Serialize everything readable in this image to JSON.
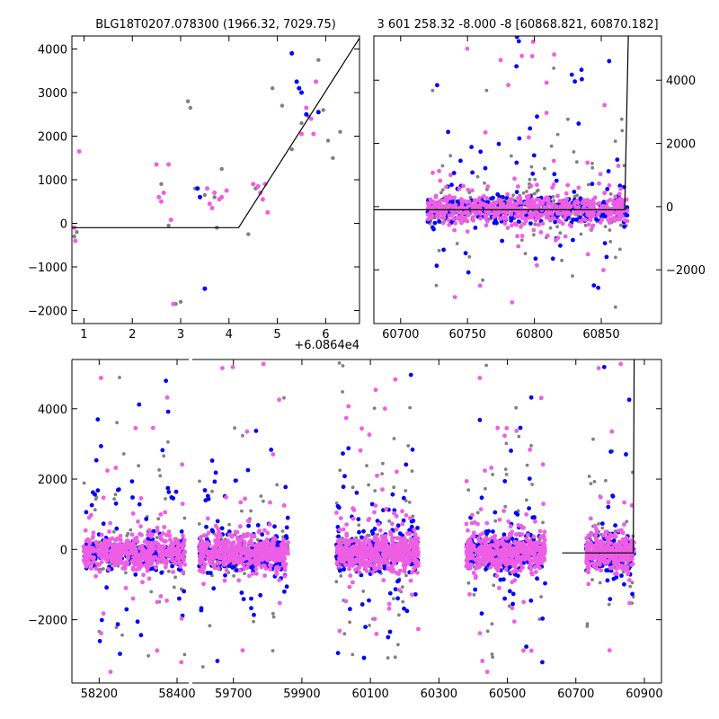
{
  "chart_data": [
    {
      "id": "panel-top-left",
      "type": "scatter",
      "title": "BLG18T0207.078300 (1966.32, 7029.75)",
      "xlim": [
        0.75,
        6.7
      ],
      "ylim": [
        -2300,
        4300
      ],
      "xticks": [
        1,
        2,
        3,
        4,
        5,
        6
      ],
      "yticks": [
        -2000,
        -1000,
        0,
        1000,
        2000,
        3000,
        4000
      ],
      "xtick_labels": [
        "1",
        "2",
        "3",
        "4",
        "5",
        "6"
      ],
      "ytick_labels": [
        "−2000",
        "−1000",
        "0",
        "1000",
        "2000",
        "3000",
        "4000"
      ],
      "x_offset_label": "+6.0864e4",
      "model": {
        "x": [
          0.75,
          4.2,
          6.7
        ],
        "y": [
          -100,
          -100,
          4250
        ]
      },
      "series": [
        {
          "name": "gray",
          "color": "#808080",
          "size": 2.2,
          "points": [
            [
              0.8,
              -300
            ],
            [
              0.85,
              -200
            ],
            [
              2.6,
              900
            ],
            [
              3.15,
              2800
            ],
            [
              3.2,
              2650
            ],
            [
              3.3,
              800
            ],
            [
              3.5,
              650
            ],
            [
              3.7,
              600
            ],
            [
              3.85,
              1250
            ],
            [
              3.75,
              -100
            ],
            [
              2.75,
              -50
            ],
            [
              4.4,
              -250
            ],
            [
              4.55,
              800
            ],
            [
              4.9,
              3100
            ],
            [
              5.1,
              2700
            ],
            [
              5.3,
              1700
            ],
            [
              5.5,
              2300
            ],
            [
              5.65,
              2450
            ],
            [
              5.85,
              3750
            ],
            [
              5.95,
              2600
            ],
            [
              6.05,
              1900
            ],
            [
              6.15,
              1500
            ],
            [
              6.3,
              2100
            ],
            [
              3.0,
              -1800
            ],
            [
              2.9,
              -1850
            ]
          ]
        },
        {
          "name": "blue",
          "color": "#0000ff",
          "size": 2.5,
          "points": [
            [
              3.35,
              800
            ],
            [
              3.4,
              600
            ],
            [
              3.5,
              -1500
            ],
            [
              5.3,
              3900
            ],
            [
              5.4,
              3250
            ],
            [
              5.45,
              3100
            ],
            [
              5.5,
              3000
            ],
            [
              5.6,
              2500
            ],
            [
              5.85,
              2550
            ]
          ]
        },
        {
          "name": "magenta",
          "color": "#ee5ee5",
          "size": 2.5,
          "points": [
            [
              0.8,
              -100
            ],
            [
              0.82,
              -400
            ],
            [
              0.9,
              1650
            ],
            [
              2.5,
              1350
            ],
            [
              2.55,
              600
            ],
            [
              2.6,
              500
            ],
            [
              2.65,
              700
            ],
            [
              2.75,
              1350
            ],
            [
              2.8,
              80
            ],
            [
              2.85,
              -1850
            ],
            [
              3.55,
              800
            ],
            [
              3.6,
              450
            ],
            [
              3.65,
              350
            ],
            [
              3.7,
              700
            ],
            [
              3.8,
              550
            ],
            [
              3.85,
              600
            ],
            [
              3.95,
              750
            ],
            [
              4.5,
              900
            ],
            [
              4.6,
              850
            ],
            [
              4.65,
              700
            ],
            [
              4.7,
              550
            ],
            [
              4.75,
              900
            ],
            [
              4.8,
              250
            ],
            [
              5.5,
              2050
            ],
            [
              5.6,
              2650
            ],
            [
              5.7,
              2400
            ],
            [
              5.75,
              2050
            ],
            [
              5.8,
              3250
            ]
          ]
        }
      ]
    },
    {
      "id": "panel-top-right",
      "type": "scatter",
      "title": "3 601 258.32 -8.000 -8 [60868.821, 60870.182]",
      "xlim": [
        60680,
        60895
      ],
      "ylim": [
        -3700,
        5400
      ],
      "xticks": [
        60700,
        60750,
        60800,
        60850
      ],
      "yticks": [
        -2000,
        0,
        2000,
        4000
      ],
      "xtick_labels": [
        "60700",
        "60750",
        "60800",
        "60850"
      ],
      "ytick_labels": [
        "−2000",
        "0",
        "2000",
        "4000"
      ],
      "y_axis_side": "right",
      "model": {
        "x": [
          60680,
          60867.5,
          60870.2,
          60871
        ],
        "y": [
          -100,
          -100,
          5400,
          5400
        ]
      },
      "cluster": {
        "x_range": [
          60720,
          60870
        ],
        "core_y": [
          -500,
          500
        ],
        "spread_y": [
          -2000,
          2500
        ],
        "n_gray": 320,
        "n_blue": 340,
        "n_magenta": 560
      }
    },
    {
      "id": "panel-bottom",
      "type": "scatter",
      "xlim": [
        58130,
        60950
      ],
      "ylim": [
        -3800,
        5400
      ],
      "xticks": [
        58200,
        58400,
        59700,
        59900,
        60100,
        60300,
        60500,
        60700,
        60900
      ],
      "yticks": [
        -2000,
        0,
        2000,
        4000
      ],
      "xtick_labels": [
        "58200",
        "58400",
        "59700",
        "59900",
        "60100",
        "60300",
        "60500",
        "60700",
        "60900"
      ],
      "ytick_labels": [
        "−2000",
        "0",
        "2000",
        "4000"
      ],
      "x_break": {
        "between": [
          58430,
          59580
        ]
      },
      "model": {
        "x": [
          60660,
          60867.5,
          60870.2,
          60871
        ],
        "y": [
          -100,
          -100,
          5400,
          5400
        ]
      },
      "seasons": [
        {
          "x_range": [
            58160,
            58420
          ],
          "n": 520
        },
        {
          "x_range": [
            59600,
            59860
          ],
          "n": 560
        },
        {
          "x_range": [
            60000,
            60240
          ],
          "n": 600
        },
        {
          "x_range": [
            60380,
            60610
          ],
          "n": 560
        },
        {
          "x_range": [
            60730,
            60870
          ],
          "n": 380
        }
      ]
    }
  ]
}
